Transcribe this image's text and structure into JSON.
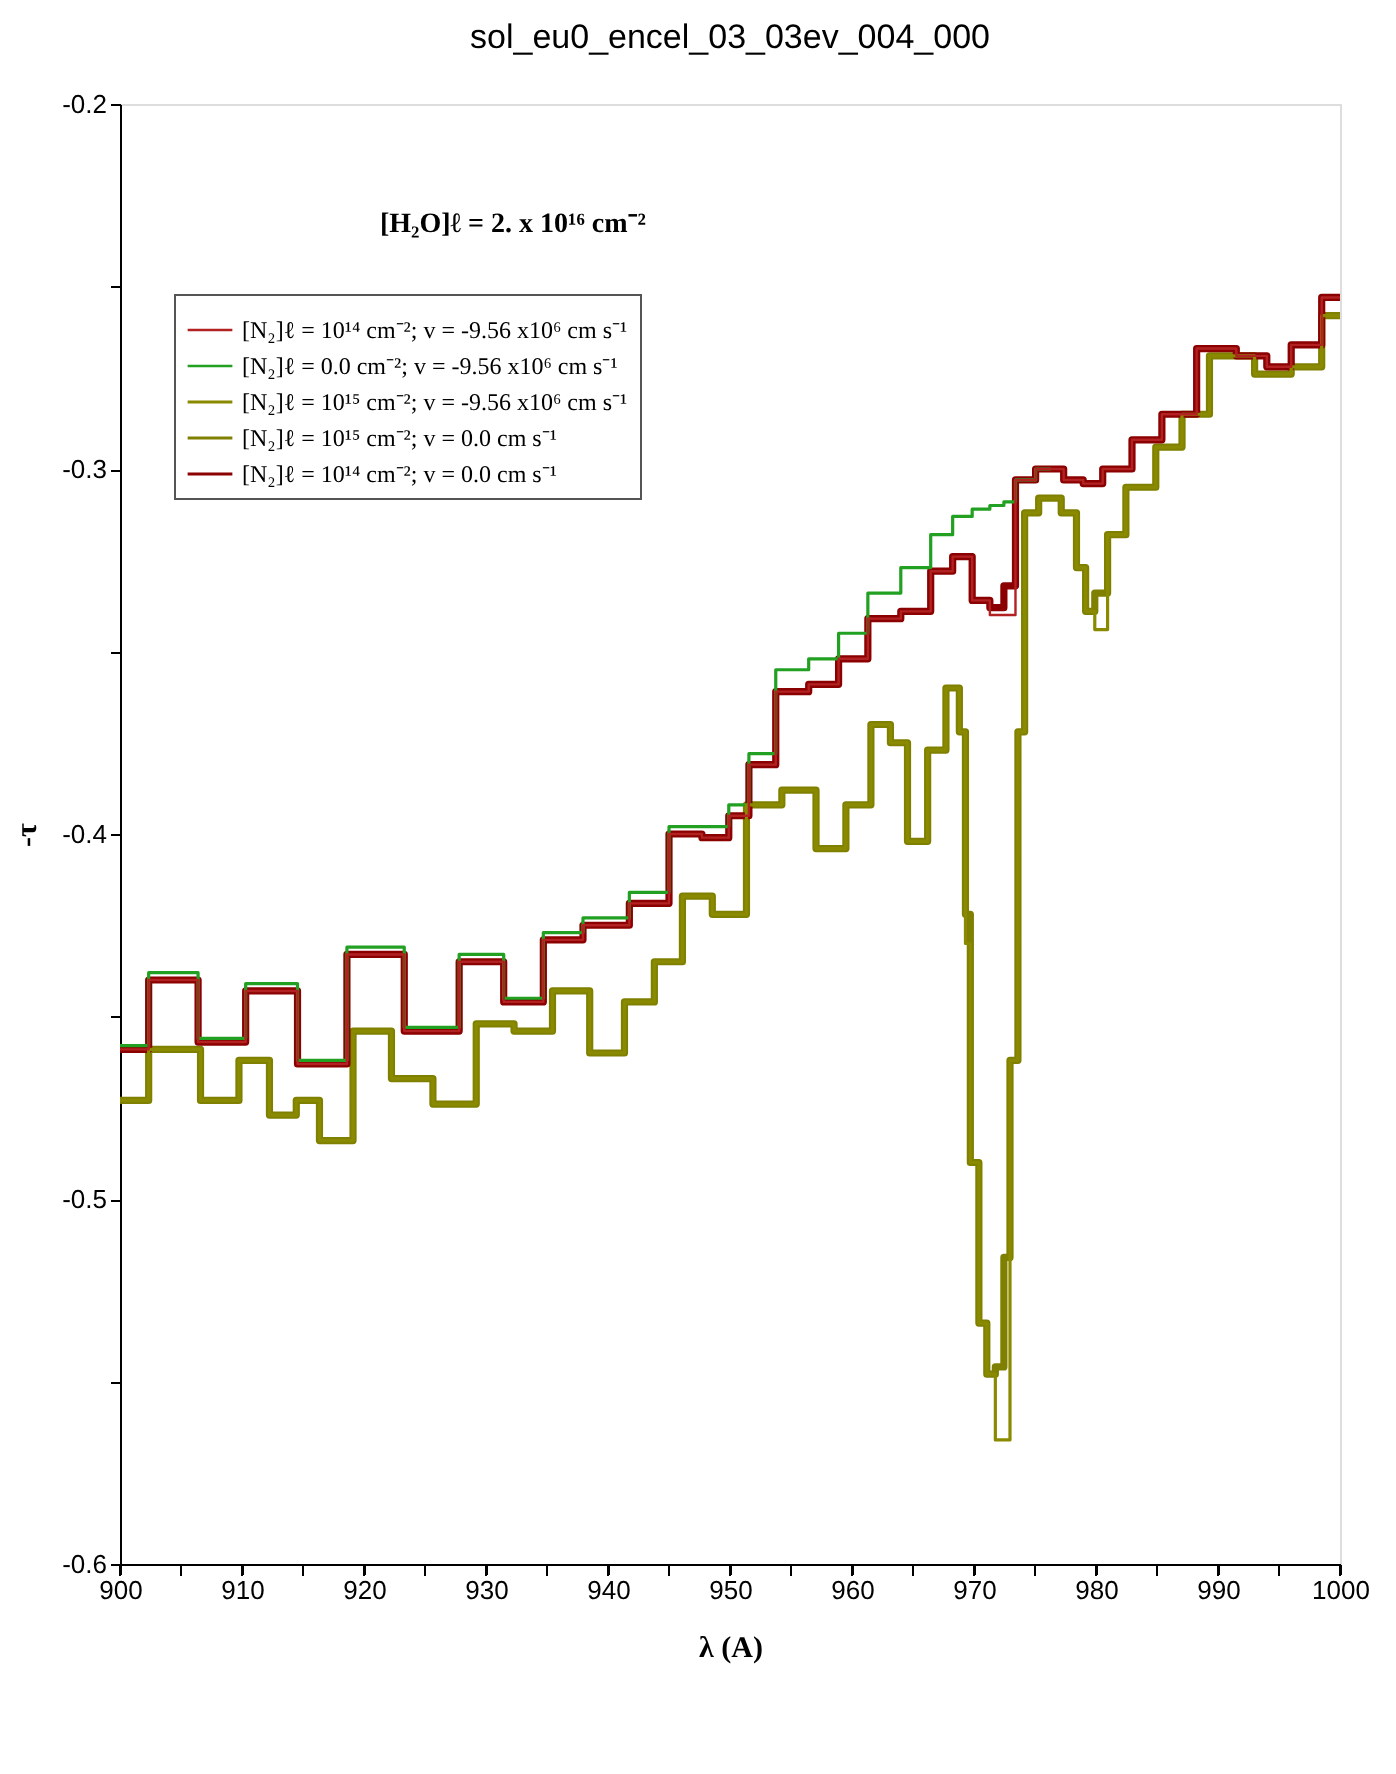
{
  "chart_data": {
    "type": "step",
    "title": "sol_eu0_encel_03_03ev_004_000",
    "xlabel": "λ (A)",
    "ylabel": "-τ",
    "annotations": [
      "[H₂O]ℓ = 2. x 10¹⁶ cm⁻²"
    ],
    "xlim": [
      900,
      1000
    ],
    "ylim": [
      -0.6,
      -0.2
    ],
    "xticks": [
      900,
      {
        "value": 905,
        "label": null
      },
      910,
      {
        "value": 915,
        "label": null
      },
      920,
      {
        "value": 925,
        "label": null
      },
      930,
      {
        "value": 935,
        "label": null
      },
      940,
      {
        "value": 945,
        "label": null
      },
      950,
      {
        "value": 955,
        "label": null
      },
      960,
      {
        "value": 965,
        "label": null
      },
      970,
      {
        "value": 975,
        "label": null
      },
      980,
      {
        "value": 985,
        "label": null
      },
      990,
      {
        "value": 995,
        "label": null
      },
      1000
    ],
    "yticks": [
      -0.6,
      {
        "value": -0.55,
        "label": null
      },
      -0.5,
      {
        "value": -0.45,
        "label": null
      },
      -0.4,
      {
        "value": -0.35,
        "label": null
      },
      -0.3,
      {
        "value": -0.25,
        "label": null
      },
      -0.2
    ],
    "grid": false,
    "legend": "top left",
    "line_style": "solid",
    "series": [
      {
        "name": "[N₂]ℓ = 10¹⁴ cm⁻²; v = -9.56 x10⁶ cm s⁻¹",
        "color": "#b22222",
        "x": [
          900,
          904.7,
          908.1,
          912.5,
          916.6,
          920.6,
          926,
          929.6,
          933.3,
          936.1,
          939.8,
          943.7,
          946.3,
          949.1,
          950.7,
          952.4,
          955.1,
          957.8,
          960,
          962.6,
          965.4,
          967.5,
          969,
          970.7,
          971.9,
          973,
          973.8,
          976.3,
          978.4,
          979.5,
          981.6,
          984.3,
          986.5,
          990,
          993,
          995,
          997,
          1000
        ],
        "values": [
          -0.459,
          -0.44,
          -0.457,
          -0.443,
          -0.463,
          -0.433,
          -0.454,
          -0.435,
          -0.446,
          -0.429,
          -0.425,
          -0.419,
          -0.4,
          -0.401,
          -0.395,
          -0.381,
          -0.361,
          -0.359,
          -0.352,
          -0.341,
          -0.339,
          -0.328,
          -0.324,
          -0.336,
          -0.34,
          -0.34,
          -0.303,
          -0.3,
          -0.303,
          -0.304,
          -0.3,
          -0.292,
          -0.285,
          -0.267,
          -0.269,
          -0.272,
          -0.266,
          -0.253
        ]
      },
      {
        "name": "[N₂]ℓ = 0.0 cm⁻²; v = -9.56 x10⁶ cm s⁻¹",
        "color": "#22a022",
        "x": [
          900,
          904.7,
          908.1,
          912.5,
          916.6,
          920.6,
          926,
          929.6,
          933.3,
          936.1,
          939.8,
          943.7,
          946.3,
          949.1,
          950.7,
          952.4,
          955.1,
          957.8,
          960,
          962.6,
          965.4,
          967.5,
          969,
          970.7,
          971.9,
          973,
          973.8,
          976.3
        ],
        "values": [
          -0.458,
          -0.438,
          -0.456,
          -0.441,
          -0.462,
          -0.431,
          -0.453,
          -0.433,
          -0.445,
          -0.427,
          -0.423,
          -0.416,
          -0.398,
          -0.398,
          -0.392,
          -0.378,
          -0.355,
          -0.352,
          -0.345,
          -0.334,
          -0.327,
          -0.318,
          -0.313,
          -0.311,
          -0.31,
          -0.309,
          -0.303,
          -0.3
        ]
      },
      {
        "name": "[N₂]ℓ = 10¹⁵ cm⁻²; v = -9.56 x10⁶ cm s⁻¹",
        "color": "#8a8a00",
        "x": [
          900,
          904.7,
          908.5,
          911,
          913.5,
          915.4,
          917.3,
          920.9,
          923.6,
          927.7,
          930.7,
          933.9,
          937,
          940,
          942.7,
          944.9,
          947.3,
          949.8,
          952.9,
          955.6,
          958.5,
          960.5,
          962.6,
          963.7,
          965.4,
          967,
          968.4,
          969.2,
          969.4,
          970,
          970.8,
          971.3,
          972.2,
          972.7,
          973.2,
          974,
          974.3,
          976.3,
          978,
          978.8,
          979.5,
          980.3,
          981.6,
          983.3,
          986.5,
          987.6,
          991,
          995,
          997,
          1000
        ],
        "values": [
          -0.473,
          -0.459,
          -0.473,
          -0.462,
          -0.477,
          -0.473,
          -0.484,
          -0.454,
          -0.467,
          -0.474,
          -0.452,
          -0.454,
          -0.443,
          -0.46,
          -0.446,
          -0.435,
          -0.417,
          -0.422,
          -0.392,
          -0.388,
          -0.404,
          -0.392,
          -0.37,
          -0.375,
          -0.402,
          -0.377,
          -0.36,
          -0.372,
          -0.43,
          -0.49,
          -0.534,
          -0.548,
          -0.566,
          -0.566,
          -0.462,
          -0.372,
          -0.312,
          -0.308,
          -0.312,
          -0.327,
          -0.339,
          -0.344,
          -0.318,
          -0.305,
          -0.294,
          -0.285,
          -0.269,
          -0.274,
          -0.272,
          -0.258
        ]
      },
      {
        "name": "[N₂]ℓ = 10¹⁵ cm⁻²; v = 0.0 cm s⁻¹",
        "color": "#808000",
        "x": [
          900,
          904.7,
          908.5,
          911,
          913.5,
          915.4,
          917.3,
          920.9,
          923.6,
          927.7,
          930.7,
          933.9,
          937,
          940,
          942.7,
          944.9,
          947.3,
          949.8,
          952.9,
          955.6,
          958.5,
          960.5,
          962.6,
          963.7,
          965.4,
          967,
          968.4,
          969.2,
          969.4,
          970,
          970.8,
          971.3,
          972.2,
          972.7,
          973.2,
          974,
          974.3,
          976.3,
          978,
          978.8,
          979.5,
          980.3,
          981.6,
          983.3,
          986.5,
          987.6,
          991,
          995,
          997,
          1000
        ],
        "values": [
          -0.473,
          -0.459,
          -0.473,
          -0.462,
          -0.477,
          -0.473,
          -0.484,
          -0.454,
          -0.467,
          -0.474,
          -0.452,
          -0.454,
          -0.443,
          -0.46,
          -0.446,
          -0.435,
          -0.417,
          -0.422,
          -0.392,
          -0.388,
          -0.404,
          -0.392,
          -0.37,
          -0.375,
          -0.402,
          -0.377,
          -0.36,
          -0.372,
          -0.422,
          -0.49,
          -0.534,
          -0.548,
          -0.546,
          -0.516,
          -0.462,
          -0.372,
          -0.312,
          -0.308,
          -0.312,
          -0.327,
          -0.339,
          -0.334,
          -0.318,
          -0.305,
          -0.294,
          -0.285,
          -0.269,
          -0.274,
          -0.272,
          -0.258
        ]
      },
      {
        "name": "[N₂]ℓ = 10¹⁴ cm⁻²; v = 0.0 cm s⁻¹",
        "color": "#8b0000",
        "x": [
          900,
          904.7,
          908.1,
          912.5,
          916.6,
          920.6,
          926,
          929.6,
          933.3,
          936.1,
          939.8,
          943.7,
          946.3,
          949.1,
          950.7,
          952.4,
          955.1,
          957.8,
          960,
          962.6,
          965.4,
          967.5,
          969,
          970.7,
          971.9,
          973,
          973.8,
          976.3,
          978.4,
          979.5,
          981.6,
          984.3,
          986.5,
          990,
          993,
          995,
          997,
          1000
        ],
        "values": [
          -0.459,
          -0.44,
          -0.457,
          -0.443,
          -0.463,
          -0.433,
          -0.454,
          -0.435,
          -0.446,
          -0.429,
          -0.425,
          -0.419,
          -0.4,
          -0.401,
          -0.395,
          -0.381,
          -0.361,
          -0.359,
          -0.352,
          -0.341,
          -0.339,
          -0.328,
          -0.324,
          -0.336,
          -0.338,
          -0.332,
          -0.303,
          -0.3,
          -0.303,
          -0.304,
          -0.3,
          -0.292,
          -0.285,
          -0.267,
          -0.269,
          -0.272,
          -0.266,
          -0.253
        ]
      }
    ]
  }
}
